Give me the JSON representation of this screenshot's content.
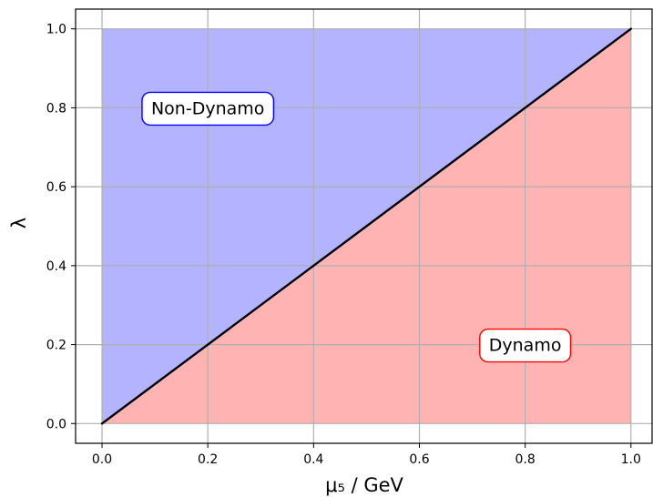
{
  "chart_data": {
    "type": "area",
    "title": "",
    "xlabel": "μ₅ / GeV",
    "ylabel": "λ",
    "xlim": [
      -0.05,
      1.04
    ],
    "ylim": [
      -0.05,
      1.05
    ],
    "xticks": [
      0.0,
      0.2,
      0.4,
      0.6,
      0.8,
      1.0
    ],
    "yticks": [
      0.0,
      0.2,
      0.4,
      0.6,
      0.8,
      1.0
    ],
    "xtick_labels": [
      "0.0",
      "0.2",
      "0.4",
      "0.6",
      "0.8",
      "1.0"
    ],
    "ytick_labels": [
      "0.0",
      "0.2",
      "0.4",
      "0.6",
      "0.8",
      "1.0"
    ],
    "grid": true,
    "boundary_line": {
      "x": [
        0.0,
        1.0
      ],
      "y": [
        0.0,
        1.0
      ],
      "color": "#000000"
    },
    "regions": [
      {
        "label": "Non-Dynamo",
        "polygon": [
          [
            0,
            0
          ],
          [
            0,
            1
          ],
          [
            1,
            1
          ]
        ],
        "fill": "#b3b3ff",
        "border": "#0000ff",
        "label_at": [
          0.2,
          0.8
        ]
      },
      {
        "label": "Dynamo",
        "polygon": [
          [
            0,
            0
          ],
          [
            1,
            0
          ],
          [
            1,
            1
          ]
        ],
        "fill": "#ffb3b3",
        "border": "#ff0000",
        "label_at": [
          0.8,
          0.2
        ]
      }
    ]
  }
}
